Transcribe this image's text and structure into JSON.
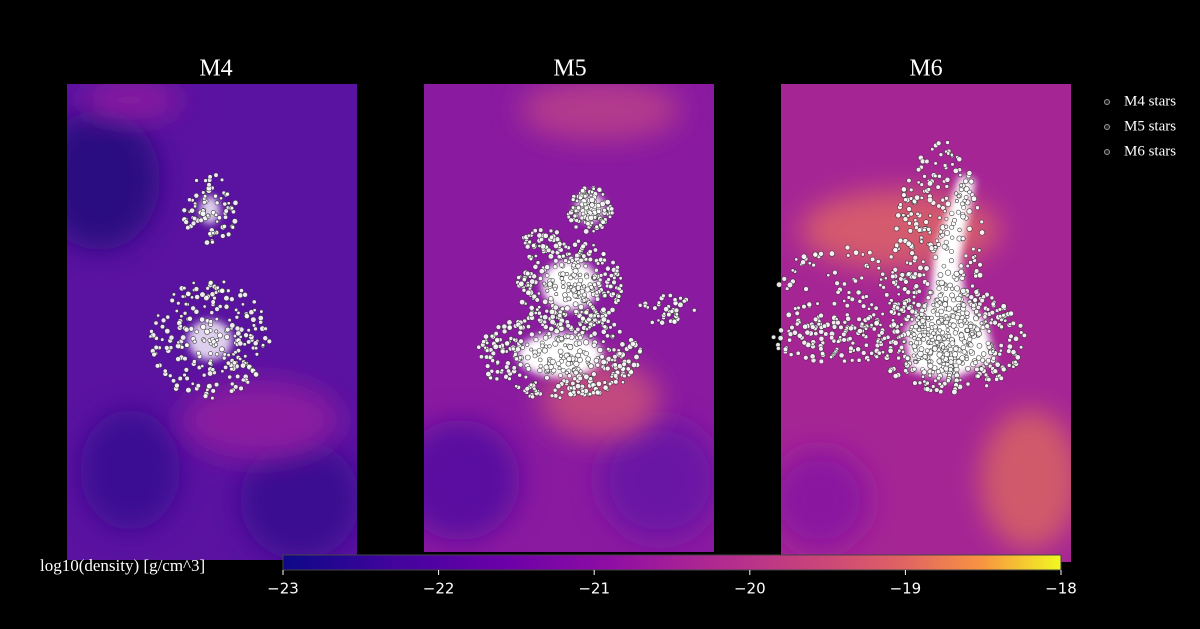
{
  "chart_data": {
    "type": "density-panels",
    "panels": [
      {
        "title": "M4"
      },
      {
        "title": "M5"
      },
      {
        "title": "M6"
      }
    ],
    "series": [
      {
        "name": "M4 stars"
      },
      {
        "name": "M5 stars"
      },
      {
        "name": "M6 stars"
      }
    ],
    "colorbar": {
      "label": "log10(density) [g/cm^3]",
      "colormap": "plasma",
      "lim": [
        -23,
        -18
      ],
      "ticks": [
        {
          "value": -23,
          "label": "−23"
        },
        {
          "value": -22,
          "label": "−22"
        },
        {
          "value": -21,
          "label": "−21"
        },
        {
          "value": -20,
          "label": "−20"
        },
        {
          "value": -19,
          "label": "−19"
        },
        {
          "value": -18,
          "label": "−18"
        }
      ]
    }
  }
}
